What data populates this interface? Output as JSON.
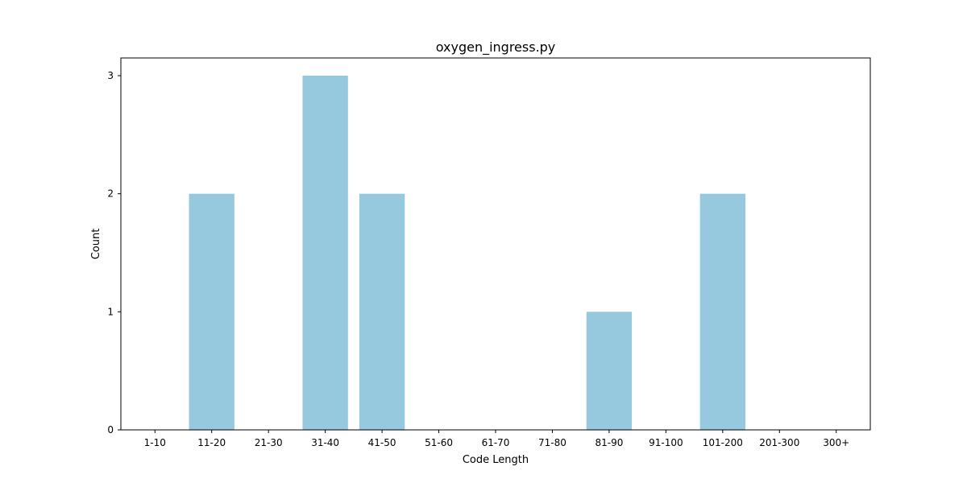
{
  "chart_data": {
    "type": "bar",
    "title": "oxygen_ingress.py",
    "xlabel": "Code Length",
    "ylabel": "Count",
    "categories": [
      "1-10",
      "11-20",
      "21-30",
      "31-40",
      "41-50",
      "51-60",
      "61-70",
      "71-80",
      "81-90",
      "91-100",
      "101-200",
      "201-300",
      "300+"
    ],
    "values": [
      0,
      2,
      0,
      3,
      2,
      0,
      0,
      0,
      1,
      0,
      2,
      0,
      0
    ],
    "yticks": [
      0,
      1,
      2,
      3
    ],
    "ylim": [
      0,
      3.15
    ],
    "grid": false,
    "bar_color": "#96c9de"
  }
}
